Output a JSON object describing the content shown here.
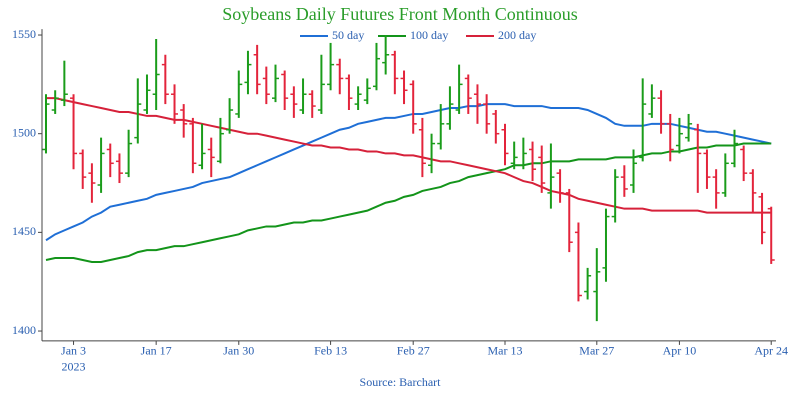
{
  "chart_data": {
    "type": "ohlc",
    "title": "Soybeans Daily Futures Front Month Continuous",
    "source": "Source: Barchart",
    "year_label": "2023",
    "categories": [
      null,
      null,
      null,
      "Jan 3",
      null,
      null,
      null,
      null,
      null,
      null,
      null,
      null,
      "Jan 17",
      null,
      null,
      null,
      null,
      null,
      null,
      null,
      null,
      "Jan 30",
      null,
      null,
      null,
      null,
      null,
      null,
      null,
      null,
      null,
      "Feb 13",
      null,
      null,
      null,
      null,
      null,
      null,
      null,
      null,
      "Feb 27",
      null,
      null,
      null,
      null,
      null,
      null,
      null,
      null,
      null,
      "Mar 13",
      null,
      null,
      null,
      null,
      null,
      null,
      null,
      null,
      null,
      "Mar 27",
      null,
      null,
      null,
      null,
      null,
      null,
      null,
      null,
      "Apr 10",
      null,
      null,
      null,
      null,
      null,
      null,
      null,
      null,
      null,
      "Apr 24"
    ],
    "open": [
      1492,
      1512,
      1517,
      1518,
      1490,
      1480,
      1474,
      1492,
      1486,
      1480,
      1498,
      1512,
      1520,
      1535,
      1520,
      1512,
      1505,
      1484,
      1492,
      1486,
      1502,
      1510,
      1526,
      1540,
      1528,
      1518,
      1530,
      1520,
      1512,
      1520,
      1512,
      1525,
      1535,
      1528,
      1515,
      1517,
      1524,
      1536,
      1540,
      1528,
      1525,
      1502,
      1484,
      1495,
      1505,
      1512,
      1528,
      1520,
      1515,
      1510,
      1502,
      1485,
      1484,
      1492,
      1488,
      1470,
      1480,
      1470,
      1450,
      1420,
      1420,
      1432,
      1458,
      1478,
      1474,
      1488,
      1510,
      1518,
      1505,
      1494,
      1498,
      1502,
      1490,
      1478,
      1470,
      1485,
      1492,
      1480,
      1468,
      1462
    ],
    "high": [
      1520,
      1522,
      1537,
      1520,
      1492,
      1485,
      1498,
      1495,
      1490,
      1502,
      1528,
      1530,
      1548,
      1540,
      1525,
      1515,
      1508,
      1505,
      1498,
      1508,
      1518,
      1532,
      1542,
      1545,
      1534,
      1535,
      1532,
      1524,
      1528,
      1522,
      1540,
      1546,
      1538,
      1530,
      1524,
      1528,
      1546,
      1550,
      1542,
      1532,
      1527,
      1508,
      1500,
      1515,
      1524,
      1535,
      1530,
      1525,
      1520,
      1512,
      1505,
      1496,
      1498,
      1496,
      1494,
      1495,
      1482,
      1472,
      1455,
      1432,
      1442,
      1462,
      1482,
      1484,
      1492,
      1528,
      1525,
      1522,
      1510,
      1508,
      1510,
      1505,
      1492,
      1482,
      1490,
      1502,
      1494,
      1482,
      1470,
      1463
    ],
    "low": [
      1490,
      1510,
      1514,
      1482,
      1472,
      1465,
      1470,
      1478,
      1475,
      1478,
      1495,
      1510,
      1512,
      1515,
      1505,
      1498,
      1480,
      1482,
      1478,
      1485,
      1500,
      1508,
      1520,
      1520,
      1515,
      1516,
      1512,
      1508,
      1510,
      1508,
      1510,
      1522,
      1520,
      1512,
      1512,
      1515,
      1522,
      1530,
      1520,
      1515,
      1500,
      1478,
      1480,
      1492,
      1502,
      1510,
      1510,
      1505,
      1500,
      1495,
      1484,
      1482,
      1482,
      1476,
      1470,
      1462,
      1465,
      1440,
      1415,
      1416,
      1405,
      1425,
      1455,
      1468,
      1470,
      1486,
      1508,
      1500,
      1486,
      1490,
      1496,
      1470,
      1472,
      1462,
      1468,
      1483,
      1476,
      1460,
      1444,
      1434
    ],
    "close": [
      1515,
      1518,
      1520,
      1490,
      1478,
      1475,
      1490,
      1485,
      1480,
      1495,
      1515,
      1522,
      1530,
      1520,
      1510,
      1505,
      1485,
      1490,
      1488,
      1500,
      1512,
      1525,
      1535,
      1525,
      1520,
      1528,
      1518,
      1515,
      1520,
      1514,
      1525,
      1535,
      1528,
      1518,
      1520,
      1523,
      1538,
      1540,
      1528,
      1522,
      1505,
      1485,
      1495,
      1505,
      1515,
      1525,
      1518,
      1515,
      1505,
      1500,
      1490,
      1488,
      1490,
      1482,
      1475,
      1478,
      1470,
      1445,
      1418,
      1428,
      1430,
      1458,
      1478,
      1472,
      1485,
      1515,
      1518,
      1505,
      1492,
      1500,
      1505,
      1490,
      1478,
      1470,
      1485,
      1495,
      1480,
      1470,
      1450,
      1436
    ],
    "up_color": "#1a9c1a",
    "down_color": "#e3243b",
    "series": [
      {
        "name": "50 day",
        "color": "#1f6fd6",
        "values": [
          1446,
          1449,
          1451,
          1453,
          1455,
          1458,
          1460,
          1463,
          1464,
          1465,
          1466,
          1467,
          1469,
          1470,
          1471,
          1472,
          1473,
          1475,
          1476,
          1477,
          1478,
          1480,
          1482,
          1484,
          1486,
          1488,
          1490,
          1492,
          1494,
          1496,
          1498,
          1500,
          1502,
          1503,
          1505,
          1506,
          1507,
          1508,
          1508,
          1509,
          1510,
          1510,
          1511,
          1512,
          1513,
          1513,
          1514,
          1514,
          1515,
          1515,
          1515,
          1514,
          1514,
          1514,
          1514,
          1513,
          1513,
          1513,
          1513,
          1512,
          1510,
          1508,
          1505,
          1504,
          1504,
          1504,
          1505,
          1505,
          1505,
          1504,
          1503,
          1502,
          1501,
          1501,
          1500,
          1499,
          1498,
          1497,
          1496,
          1495
        ]
      },
      {
        "name": "100 day",
        "color": "#13941a",
        "values": [
          1436,
          1437,
          1437,
          1437,
          1436,
          1435,
          1435,
          1436,
          1437,
          1438,
          1440,
          1441,
          1441,
          1442,
          1443,
          1443,
          1444,
          1445,
          1446,
          1447,
          1448,
          1449,
          1451,
          1452,
          1453,
          1453,
          1454,
          1455,
          1455,
          1456,
          1456,
          1457,
          1458,
          1459,
          1460,
          1461,
          1463,
          1465,
          1466,
          1468,
          1469,
          1471,
          1472,
          1473,
          1475,
          1476,
          1478,
          1479,
          1480,
          1481,
          1482,
          1484,
          1484,
          1485,
          1485,
          1486,
          1486,
          1486,
          1487,
          1487,
          1487,
          1487,
          1488,
          1488,
          1488,
          1489,
          1490,
          1490,
          1491,
          1491,
          1492,
          1493,
          1493,
          1494,
          1494,
          1494,
          1495,
          1495,
          1495,
          1495
        ]
      },
      {
        "name": "200 day",
        "color": "#d6213a",
        "values": [
          1518,
          1518,
          1517,
          1516,
          1515,
          1514,
          1513,
          1512,
          1511,
          1511,
          1510,
          1509,
          1509,
          1508,
          1507,
          1507,
          1506,
          1505,
          1504,
          1503,
          1502,
          1501,
          1500,
          1500,
          1499,
          1498,
          1497,
          1496,
          1495,
          1494,
          1494,
          1493,
          1493,
          1492,
          1492,
          1491,
          1491,
          1490,
          1490,
          1489,
          1489,
          1488,
          1487,
          1486,
          1486,
          1485,
          1484,
          1483,
          1482,
          1481,
          1480,
          1478,
          1476,
          1475,
          1473,
          1471,
          1470,
          1469,
          1467,
          1466,
          1465,
          1464,
          1463,
          1462,
          1462,
          1462,
          1461,
          1461,
          1461,
          1461,
          1461,
          1461,
          1460,
          1460,
          1460,
          1460,
          1460,
          1460,
          1460,
          1460
        ]
      }
    ],
    "ylim": [
      1395,
      1553
    ],
    "yticks": [
      1400,
      1450,
      1500,
      1550
    ]
  }
}
